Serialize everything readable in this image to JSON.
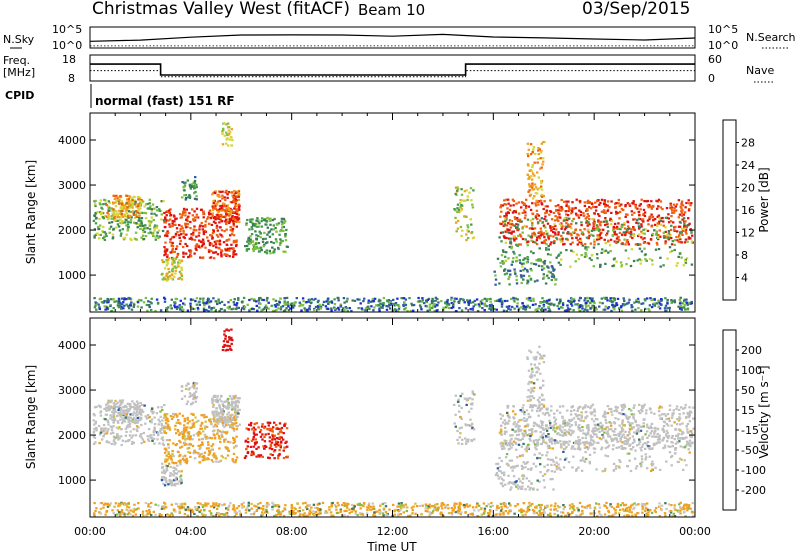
{
  "header": {
    "title": "Christmas Valley West (fitACF)",
    "beam": "Beam 10",
    "date": "03/Sep/2015"
  },
  "top_panels": {
    "nsky_label": "N.Sky",
    "nsky_ticks": [
      "10^5",
      "10^0"
    ],
    "nsearch_label": "N.Search",
    "nsearch_ticks": [
      "10^5",
      "10^0"
    ],
    "freq_label_1": "Freq.",
    "freq_label_2": "[MHz]",
    "freq_ticks": [
      "18",
      "8"
    ],
    "nave_label": "Nave",
    "nave_ticks": [
      "60",
      "0"
    ],
    "cpid_label": "CPID",
    "cpid_value": "normal (fast) 151 RF"
  },
  "colors": {
    "power_scale": [
      "#1a2bd6",
      "#2f5aa8",
      "#3a7a5a",
      "#3f9a4a",
      "#7fbf3f",
      "#d6d63a",
      "#f0a020",
      "#f06010",
      "#e01010"
    ],
    "velocity_scale": [
      "#e01010",
      "#f06010",
      "#f0a020",
      "#d6c040",
      "#c8c8c8",
      "#c8c8c8",
      "#7fbf3f",
      "#3a7a5a",
      "#2f5aa8",
      "#1a2bd6"
    ],
    "ground_scatter": "#c0c0c0"
  },
  "chart_data": [
    {
      "type": "line",
      "name": "nsky-nsearch",
      "x": [
        0,
        2,
        4,
        6,
        8,
        10,
        12,
        14,
        16,
        18,
        20,
        22,
        24
      ],
      "series": [
        {
          "name": "N.Sky",
          "values": [
            1.5,
            2.0,
            2.5,
            2.8,
            3.0,
            3.0,
            3.0,
            3.0,
            2.5,
            2.2,
            2.0,
            2.0,
            2.2
          ]
        },
        {
          "name": "N.Search",
          "values": [
            0.5,
            0.5,
            0.5,
            0.5,
            0.5,
            0.5,
            0.5,
            0.5,
            0.5,
            0.5,
            0.5,
            0.5,
            0.5
          ]
        }
      ],
      "ylim": [
        0,
        5
      ]
    },
    {
      "type": "line",
      "name": "freq-nave",
      "series": [
        {
          "name": "Freq.",
          "x": [
            0,
            2.8,
            2.8,
            14.9,
            14.9,
            24
          ],
          "values": [
            14.5,
            14.5,
            10.3,
            10.3,
            14.5,
            14.5
          ]
        },
        {
          "name": "Nave",
          "x": [
            0,
            2.8,
            2.8,
            14.9,
            14.9,
            24
          ],
          "values": [
            24,
            24,
            10,
            10,
            24,
            24
          ]
        }
      ],
      "freq_ylim": [
        8,
        18
      ],
      "nave_ylim": [
        0,
        60
      ]
    },
    {
      "type": "heatmap",
      "name": "power",
      "xlabel": "",
      "ylabel": "Slant Range [km]",
      "yticks": [
        "4000",
        "3000",
        "2000",
        "1000"
      ],
      "ytick_values": [
        4000,
        3000,
        2000,
        1000
      ],
      "xlim": [
        0,
        24
      ],
      "ylim": [
        180,
        4600
      ],
      "colorbar_label": "Power [dB]",
      "colorbar_ticks": [
        "28",
        "24",
        "20",
        "16",
        "12",
        "8",
        "4"
      ],
      "colorbar_range": [
        0,
        32
      ]
    },
    {
      "type": "heatmap",
      "name": "velocity",
      "xlabel": "Time UT",
      "ylabel": "Slant Range [km]",
      "yticks": [
        "4000",
        "3000",
        "2000",
        "1000"
      ],
      "ytick_values": [
        4000,
        3000,
        2000,
        1000
      ],
      "xticks": [
        "00:00",
        "04:00",
        "08:00",
        "12:00",
        "16:00",
        "20:00",
        "00:00"
      ],
      "xtick_values": [
        0,
        4,
        8,
        12,
        16,
        20,
        24
      ],
      "xlim": [
        0,
        24
      ],
      "ylim": [
        180,
        4600
      ],
      "colorbar_label": "Velocity [m s⁻¹]",
      "colorbar_ticks": [
        "200",
        "100",
        "50",
        "15",
        "-15",
        "-50",
        "-100",
        "-200"
      ]
    }
  ]
}
